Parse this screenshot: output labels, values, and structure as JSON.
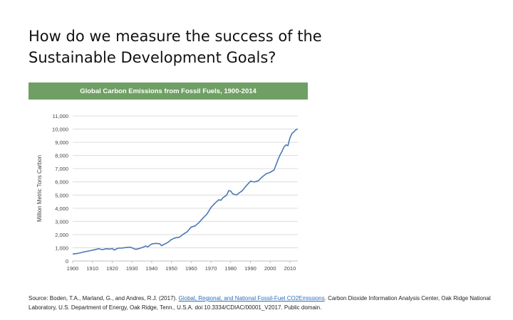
{
  "slide": {
    "title_line1": "How do we measure the success of the",
    "title_line2": "Sustainable Development Goals?"
  },
  "caption": {
    "before_link": "Source: Boden, T.A., Marland, G., and Andres, R.J. (2017). ",
    "link_text": "Global, Regional, and National Fossil-Fuel CO2Emissions",
    "after_link": ". Carbon Dioxide Information Analysis Center, Oak Ridge National Laboratory, U.S. Department of Energy, Oak Ridge, Tenn., U.S.A. doi 10.3334/CDIAC/00001_V2017. Public domain."
  },
  "chart_data": {
    "type": "line",
    "title": "Global Carbon Emissions from Fossil Fuels, 1900-2014",
    "xlabel": "",
    "ylabel": "Million Metric Tons Carbon",
    "xlim": [
      1900,
      2014
    ],
    "ylim": [
      0,
      11000
    ],
    "xticks": [
      1900,
      1910,
      1920,
      1930,
      1940,
      1950,
      1960,
      1970,
      1980,
      1990,
      2000,
      2010
    ],
    "yticks": [
      0,
      1000,
      2000,
      3000,
      4000,
      5000,
      6000,
      7000,
      8000,
      9000,
      10000,
      11000
    ],
    "ytick_labels": [
      "0",
      "1,000",
      "2,000",
      "3,000",
      "4,000",
      "5,000",
      "6,000",
      "7,000",
      "8,000",
      "9,000",
      "10,000",
      "11,000"
    ],
    "grid": true,
    "line_color": "#4a78b5",
    "series": [
      {
        "x": [
          1900,
          1902,
          1904,
          1906,
          1908,
          1910,
          1912,
          1913,
          1915,
          1917,
          1919,
          1920,
          1921,
          1923,
          1925,
          1927,
          1929,
          1930,
          1932,
          1934,
          1936,
          1937,
          1938,
          1940,
          1942,
          1944,
          1945,
          1946,
          1948,
          1950,
          1952,
          1954,
          1956,
          1958,
          1960,
          1962,
          1964,
          1966,
          1968,
          1970,
          1972,
          1974,
          1975,
          1976,
          1978,
          1979,
          1980,
          1981,
          1982,
          1983,
          1984,
          1986,
          1988,
          1990,
          1992,
          1994,
          1996,
          1998,
          2000,
          2002,
          2003,
          2004,
          2005,
          2006,
          2007,
          2008,
          2009,
          2010,
          2011,
          2012,
          2013,
          2014
        ],
        "y": [
          530,
          560,
          620,
          700,
          750,
          820,
          880,
          940,
          860,
          930,
          900,
          950,
          830,
          970,
          980,
          1020,
          1050,
          1000,
          880,
          960,
          1070,
          1140,
          1070,
          1290,
          1330,
          1310,
          1160,
          1240,
          1390,
          1630,
          1760,
          1800,
          2030,
          2220,
          2570,
          2660,
          2920,
          3250,
          3560,
          4050,
          4380,
          4640,
          4600,
          4790,
          5000,
          5340,
          5300,
          5100,
          5040,
          5010,
          5120,
          5350,
          5720,
          6050,
          5990,
          6080,
          6380,
          6610,
          6720,
          6910,
          7300,
          7700,
          8050,
          8310,
          8650,
          8800,
          8740,
          9330,
          9660,
          9790,
          9950,
          10020
        ]
      }
    ]
  }
}
